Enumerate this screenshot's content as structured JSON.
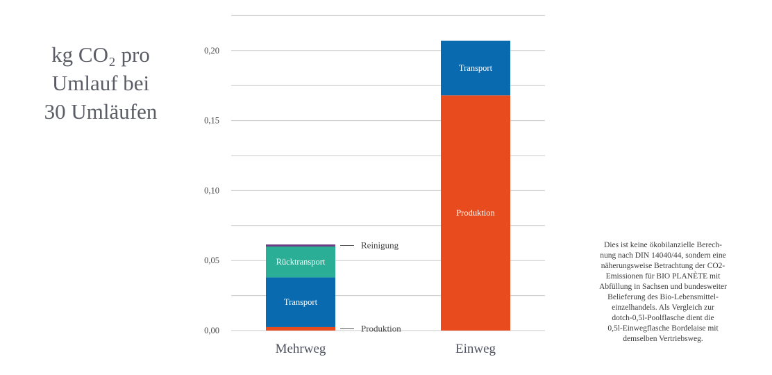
{
  "title_lines": [
    "kg CO₂ pro",
    "Umlauf bei",
    "30 Umläufen"
  ],
  "note_lines": [
    "Dies ist keine ökobilanzielle Berech-",
    "nung nach DIN 14040/44, sondern eine",
    "näherungsweise Betrachtung der CO2-",
    "Emissionen für BIO PLANÈTE mit",
    "Abfüllung in Sachsen und bundesweiter",
    "Belieferung des Bio-Lebensmittel-",
    "einzelhandels. Als Vergleich zur",
    "dotch-0,5l-Poolflasche dient die",
    "0,5l-Einwegflasche Bordelaise mit",
    "demselben Vertriebsweg."
  ],
  "chart_data": {
    "type": "bar",
    "stacked": true,
    "categories": [
      "Mehrweg",
      "Einweg"
    ],
    "series": [
      {
        "name": "Produktion",
        "color": "#e84c1e",
        "values": [
          0.0025,
          0.168
        ]
      },
      {
        "name": "Transport",
        "color": "#0a6ab0",
        "values": [
          0.0355,
          0.039
        ]
      },
      {
        "name": "Rücktransport",
        "color": "#2aaf96",
        "values": [
          0.022,
          0
        ]
      },
      {
        "name": "Reinigung",
        "color": "#6a3d80",
        "values": [
          0.0015,
          0
        ]
      }
    ],
    "ylim": [
      0,
      0.225
    ],
    "yticks": [
      0.0,
      0.05,
      0.1,
      0.15,
      0.2
    ],
    "ytick_labels": [
      "0,00",
      "0,05",
      "0,10",
      "0,15",
      "0,20"
    ],
    "gridlines": [
      0.0,
      0.025,
      0.05,
      0.075,
      0.1,
      0.125,
      0.15,
      0.175,
      0.2,
      0.225
    ],
    "grid": true,
    "xlabel": "",
    "ylabel": "",
    "bar_labels": [
      {
        "category": "Mehrweg",
        "series": "Transport",
        "text": "Transport"
      },
      {
        "category": "Mehrweg",
        "series": "Rücktransport",
        "text": "Rücktransport"
      },
      {
        "category": "Einweg",
        "series": "Transport",
        "text": "Transport"
      },
      {
        "category": "Einweg",
        "series": "Produktion",
        "text": "Produktion"
      }
    ],
    "annotations": [
      {
        "category": "Mehrweg",
        "series": "Reinigung",
        "text": "Reinigung"
      },
      {
        "category": "Mehrweg",
        "series": "Produktion",
        "text": "Produktion"
      }
    ]
  }
}
